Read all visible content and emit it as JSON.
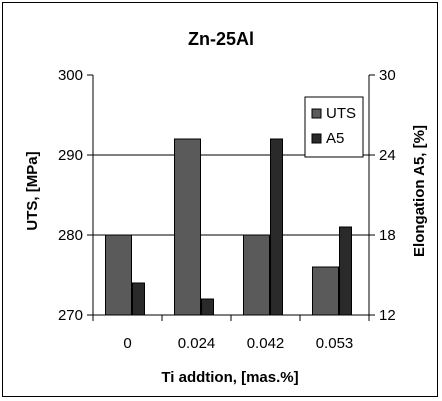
{
  "chart_data": {
    "type": "bar",
    "title": "Zn-25Al",
    "xlabel": "Ti addtion, [mas.%]",
    "ylabel": "UTS, [MPa]",
    "y2label": "Elongation A5, [%]",
    "categories": [
      "0",
      "0.024",
      "0.042",
      "0.053"
    ],
    "ylim": [
      270,
      300
    ],
    "y2lim": [
      12,
      30
    ],
    "yticks": [
      "300",
      "290",
      "280",
      "270"
    ],
    "y2ticks": [
      "30",
      "24",
      "18",
      "12"
    ],
    "grid": true,
    "legend_position": "top-right",
    "series": [
      {
        "name": "UTS",
        "axis": "left",
        "values": [
          280,
          292,
          280,
          276
        ],
        "color": "#5a5a5a"
      },
      {
        "name": "A5",
        "axis": "right",
        "values": [
          14.4,
          13.2,
          25.2,
          18.6
        ],
        "color": "#2a2a2a"
      }
    ]
  }
}
